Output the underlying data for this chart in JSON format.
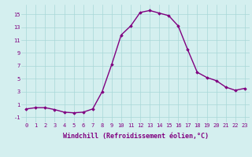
{
  "x": [
    0,
    1,
    2,
    3,
    4,
    5,
    6,
    7,
    8,
    9,
    10,
    11,
    12,
    13,
    14,
    15,
    16,
    17,
    18,
    19,
    20,
    21,
    22,
    23
  ],
  "y": [
    0.3,
    0.5,
    0.5,
    0.2,
    -0.2,
    -0.3,
    -0.2,
    0.3,
    3.0,
    7.2,
    11.8,
    13.2,
    15.3,
    15.6,
    15.2,
    14.8,
    13.2,
    9.5,
    6.0,
    5.2,
    4.7,
    3.7,
    3.2,
    3.5
  ],
  "line_color": "#800080",
  "marker": "D",
  "marker_size": 1.8,
  "xlabel": "Windchill (Refroidissement éolien,°C)",
  "xlabel_fontsize": 6.0,
  "xlim": [
    -0.5,
    23.5
  ],
  "ylim": [
    -1.8,
    16.5
  ],
  "yticks": [
    -1,
    1,
    3,
    5,
    7,
    9,
    11,
    13,
    15
  ],
  "xticks": [
    0,
    1,
    2,
    3,
    4,
    5,
    6,
    7,
    8,
    9,
    10,
    11,
    12,
    13,
    14,
    15,
    16,
    17,
    18,
    19,
    20,
    21,
    22,
    23
  ],
  "background_color": "#d4efef",
  "grid_color": "#a8d8d8",
  "tick_color": "#800080",
  "tick_fontsize": 5.0,
  "linewidth": 1.0
}
